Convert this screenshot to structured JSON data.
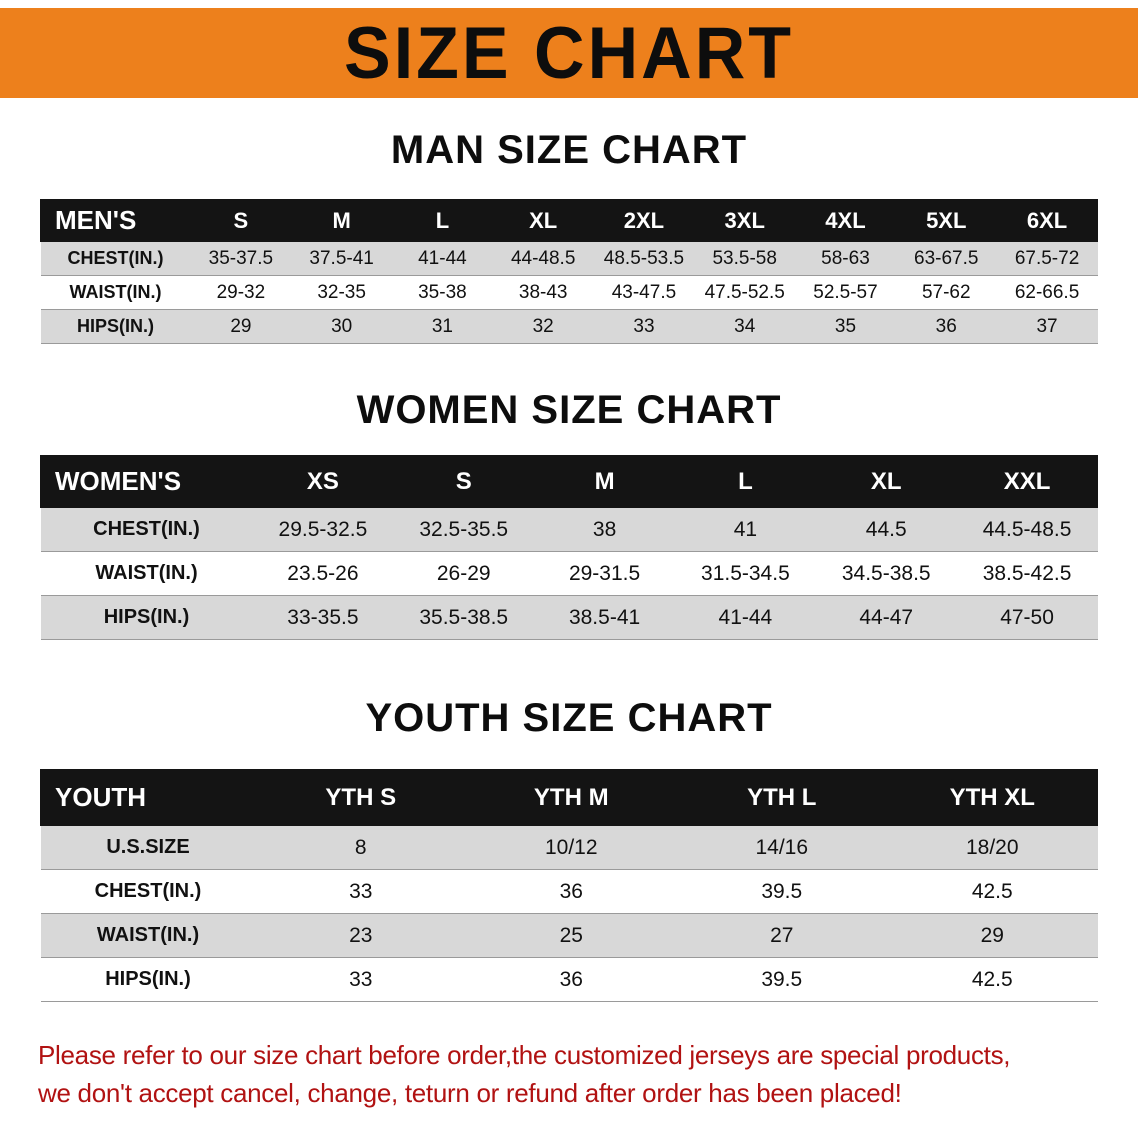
{
  "colors": {
    "banner_bg": "#ED801C",
    "table_header_bg": "#141414",
    "row_stripe": "#D8D8D8",
    "disclaimer_text": "#B11212"
  },
  "banner": {
    "title": "SIZE CHART"
  },
  "men": {
    "heading": "MAN SIZE CHART",
    "table": {
      "header": [
        "MEN'S",
        "S",
        "M",
        "L",
        "XL",
        "2XL",
        "3XL",
        "4XL",
        "5XL",
        "6XL"
      ],
      "rows": [
        [
          "CHEST(IN.)",
          "35-37.5",
          "37.5-41",
          "41-44",
          "44-48.5",
          "48.5-53.5",
          "53.5-58",
          "58-63",
          "63-67.5",
          "67.5-72"
        ],
        [
          "WAIST(IN.)",
          "29-32",
          "32-35",
          "35-38",
          "38-43",
          "43-47.5",
          "47.5-52.5",
          "52.5-57",
          "57-62",
          "62-66.5"
        ],
        [
          "HIPS(IN.)",
          "29",
          "30",
          "31",
          "32",
          "33",
          "34",
          "35",
          "36",
          "37"
        ]
      ]
    }
  },
  "women": {
    "heading": "WOMEN SIZE CHART",
    "table": {
      "header": [
        "WOMEN'S",
        "XS",
        "S",
        "M",
        "L",
        "XL",
        "XXL"
      ],
      "rows": [
        [
          "CHEST(IN.)",
          "29.5-32.5",
          "32.5-35.5",
          "38",
          "41",
          "44.5",
          "44.5-48.5"
        ],
        [
          "WAIST(IN.)",
          "23.5-26",
          "26-29",
          "29-31.5",
          "31.5-34.5",
          "34.5-38.5",
          "38.5-42.5"
        ],
        [
          "HIPS(IN.)",
          "33-35.5",
          "35.5-38.5",
          "38.5-41",
          "41-44",
          "44-47",
          "47-50"
        ]
      ]
    }
  },
  "youth": {
    "heading": "YOUTH SIZE CHART",
    "table": {
      "header": [
        "YOUTH",
        "YTH S",
        "YTH M",
        "YTH L",
        "YTH XL"
      ],
      "rows": [
        [
          "U.S.SIZE",
          "8",
          "10/12",
          "14/16",
          "18/20"
        ],
        [
          "CHEST(IN.)",
          "33",
          "36",
          "39.5",
          "42.5"
        ],
        [
          "WAIST(IN.)",
          "23",
          "25",
          "27",
          "29"
        ],
        [
          "HIPS(IN.)",
          "33",
          "36",
          "39.5",
          "42.5"
        ]
      ]
    }
  },
  "disclaimer": {
    "line1": "Please refer to our size chart before order,the customized jerseys are special products,",
    "line2": "we don't accept cancel, change, teturn or refund after order has been placed!"
  }
}
